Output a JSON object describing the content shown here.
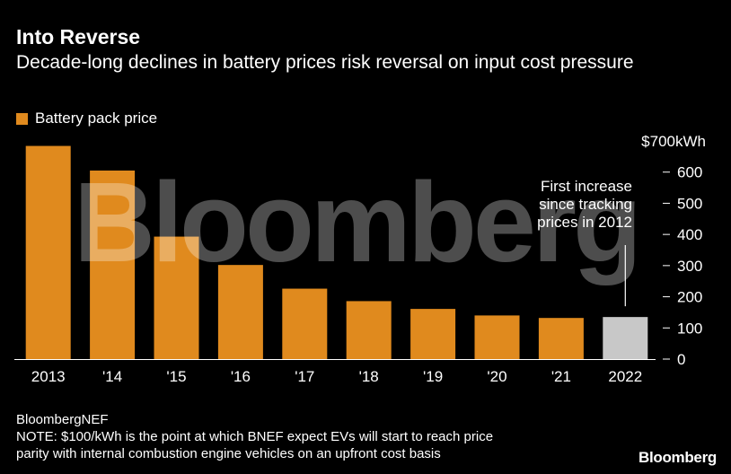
{
  "header": {
    "title": "Into Reverse",
    "subtitle": "Decade-long declines in battery prices risk reversal on input cost pressure"
  },
  "legend": {
    "label": "Battery pack price"
  },
  "colors": {
    "bar": "#e08a1e",
    "highlight": "#c8c8c8",
    "background": "#000000",
    "text": "#ffffff"
  },
  "chart_data": {
    "type": "bar",
    "title": "Into Reverse",
    "subtitle": "Decade-long declines in battery prices risk reversal on input cost pressure",
    "categories": [
      "2013",
      "'14",
      "'15",
      "'16",
      "'17",
      "'18",
      "'19",
      "'20",
      "'21",
      "2022"
    ],
    "series": [
      {
        "name": "Battery pack price",
        "values": [
          684,
          605,
          393,
          302,
          226,
          186,
          161,
          140,
          132,
          135
        ]
      }
    ],
    "highlight_index": 9,
    "ylim": [
      0,
      700
    ],
    "yticks": [
      0,
      100,
      200,
      300,
      400,
      500,
      600,
      700
    ],
    "ytick_labels": [
      "0",
      "100",
      "200",
      "300",
      "400",
      "500",
      "600",
      "$700kWh"
    ],
    "axis_side": "right",
    "annotation": {
      "text": [
        "First increase",
        "since tracking",
        "prices in 2012"
      ],
      "target_index": 9
    }
  },
  "watermark": "Bloomberg",
  "footer": {
    "source": "BloombergNEF",
    "note_line1": "NOTE: $100/kWh is the point at which BNEF expect EVs will start to reach price",
    "note_line2": "parity with internal combustion engine vehicles on an upfront cost basis"
  },
  "brand": "Bloomberg"
}
